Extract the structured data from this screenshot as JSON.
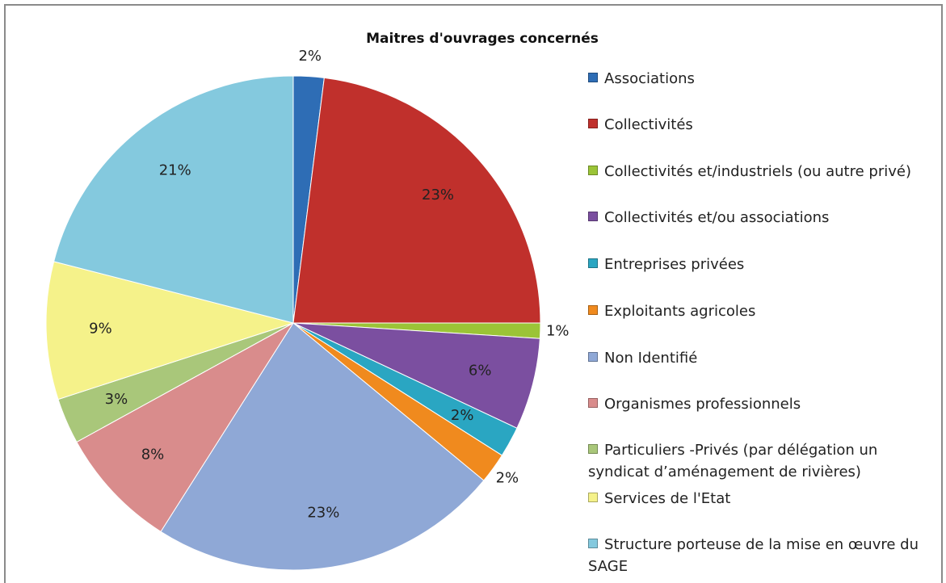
{
  "chart_data": {
    "type": "pie",
    "title": "Maitres d'ouvrages concernés",
    "categories": [
      "Associations",
      "Collectivités",
      "Collectivités et/industriels (ou autre privé)",
      "Collectivités et/ou associations",
      "Entreprises privées",
      "Exploitants agricoles",
      "Non Identifié",
      "Organismes professionnels",
      "Particuliers -Privés (par délégation un syndicat d’aménagement de rivières)",
      "Services de l'Etat",
      "Structure porteuse de la mise en œuvre du SAGE"
    ],
    "values": [
      2,
      23,
      1,
      6,
      2,
      2,
      23,
      8,
      3,
      9,
      21
    ],
    "value_labels": [
      "2%",
      "23%",
      "1%",
      "6%",
      "2%",
      "2%",
      "23%",
      "8%",
      "3%",
      "9%",
      "21%"
    ],
    "colors": [
      "#2e6db5",
      "#c0302c",
      "#9bc437",
      "#7b4fa0",
      "#2aa6c2",
      "#f08a1e",
      "#8fa8d6",
      "#d98c8c",
      "#a9c77a",
      "#f5f28a",
      "#84c9de"
    ],
    "legend": "right"
  }
}
